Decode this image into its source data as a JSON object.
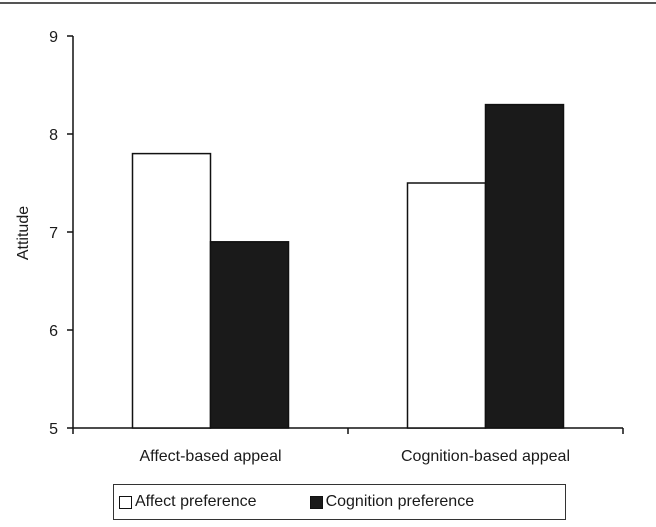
{
  "chart_data": {
    "type": "bar",
    "categories": [
      "Affect-based appeal",
      "Cognition-based appeal"
    ],
    "series": [
      {
        "name": "Affect preference",
        "values": [
          7.8,
          7.5
        ],
        "color": "#ffffff"
      },
      {
        "name": "Cognition preference",
        "values": [
          6.9,
          8.3
        ],
        "color": "#1a1a1a"
      }
    ],
    "title": "",
    "xlabel": "",
    "ylabel": "Attitude",
    "ylim": [
      5,
      9
    ],
    "yticks": [
      5,
      6,
      7,
      8,
      9
    ],
    "grid": false,
    "legend_position": "bottom"
  }
}
